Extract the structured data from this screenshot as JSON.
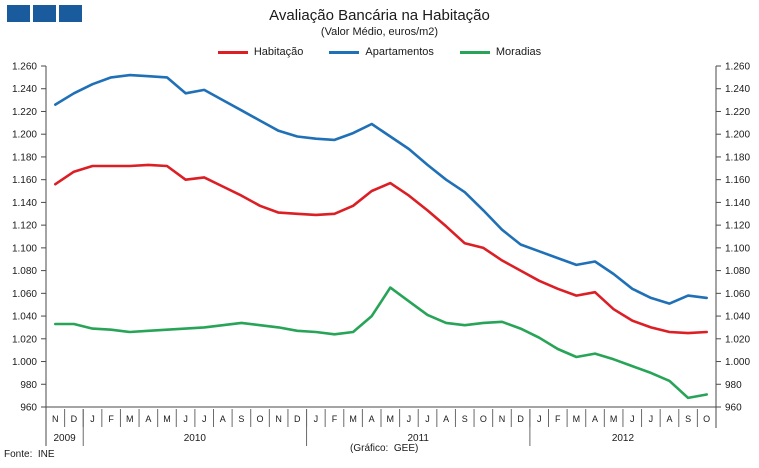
{
  "header": {
    "title": "Avaliação Bancária na Habitação",
    "subtitle": "(Valor Médio, euros/m2)"
  },
  "logo": {
    "squares": 3,
    "color": "#1a5b9e"
  },
  "legend": [
    {
      "label": "Habitação",
      "color": "#dc1e25"
    },
    {
      "label": "Apartamentos",
      "color": "#1f70b6"
    },
    {
      "label": "Moradias",
      "color": "#27a457"
    }
  ],
  "footer": {
    "source": "Fonte:  INE",
    "credit": "(Gráfico:  GEE)"
  },
  "chart_data": {
    "type": "line",
    "title": "Avaliação Bancária na Habitação",
    "subtitle": "(Valor Médio, euros/m2)",
    "xlabel": "",
    "ylabel": "euros/m2",
    "ylim": [
      960,
      1260
    ],
    "ytick_step": 20,
    "ytick_labels": [
      "960",
      "980",
      "1.000",
      "1.020",
      "1.040",
      "1.060",
      "1.080",
      "1.100",
      "1.120",
      "1.140",
      "1.160",
      "1.180",
      "1.200",
      "1.220",
      "1.240",
      "1.260"
    ],
    "grid": false,
    "legend_position": "top",
    "months": [
      "N",
      "D",
      "J",
      "F",
      "M",
      "A",
      "M",
      "J",
      "J",
      "A",
      "S",
      "O",
      "N",
      "D",
      "J",
      "F",
      "M",
      "A",
      "M",
      "J",
      "J",
      "A",
      "S",
      "O",
      "N",
      "D",
      "J",
      "F",
      "M",
      "A",
      "M",
      "J",
      "J",
      "A",
      "S",
      "O"
    ],
    "years": [
      {
        "label": "2009",
        "start": 0,
        "count": 2
      },
      {
        "label": "2010",
        "start": 2,
        "count": 12
      },
      {
        "label": "2011",
        "start": 14,
        "count": 12
      },
      {
        "label": "2012",
        "start": 26,
        "count": 10
      }
    ],
    "series": [
      {
        "name": "Habitação",
        "color": "#dc1e25",
        "values": [
          1156,
          1167,
          1172,
          1172,
          1172,
          1173,
          1172,
          1160,
          1162,
          1154,
          1146,
          1137,
          1131,
          1130,
          1129,
          1130,
          1137,
          1150,
          1157,
          1146,
          1133,
          1119,
          1104,
          1100,
          1089,
          1080,
          1071,
          1064,
          1058,
          1061,
          1046,
          1036,
          1030,
          1026,
          1025,
          1026
        ]
      },
      {
        "name": "Apartamentos",
        "color": "#1f70b6",
        "values": [
          1226,
          1236,
          1244,
          1250,
          1252,
          1251,
          1250,
          1236,
          1239,
          1230,
          1221,
          1212,
          1203,
          1198,
          1196,
          1195,
          1201,
          1209,
          1198,
          1187,
          1173,
          1160,
          1149,
          1133,
          1116,
          1103,
          1097,
          1091,
          1085,
          1088,
          1077,
          1064,
          1056,
          1051,
          1058,
          1056
        ]
      },
      {
        "name": "Moradias",
        "color": "#27a457",
        "values": [
          1033,
          1033,
          1029,
          1028,
          1026,
          1027,
          1028,
          1029,
          1030,
          1032,
          1034,
          1032,
          1030,
          1027,
          1026,
          1024,
          1026,
          1040,
          1065,
          1053,
          1041,
          1034,
          1032,
          1034,
          1035,
          1029,
          1021,
          1011,
          1004,
          1007,
          1002,
          996,
          990,
          983,
          968,
          971
        ]
      }
    ]
  }
}
